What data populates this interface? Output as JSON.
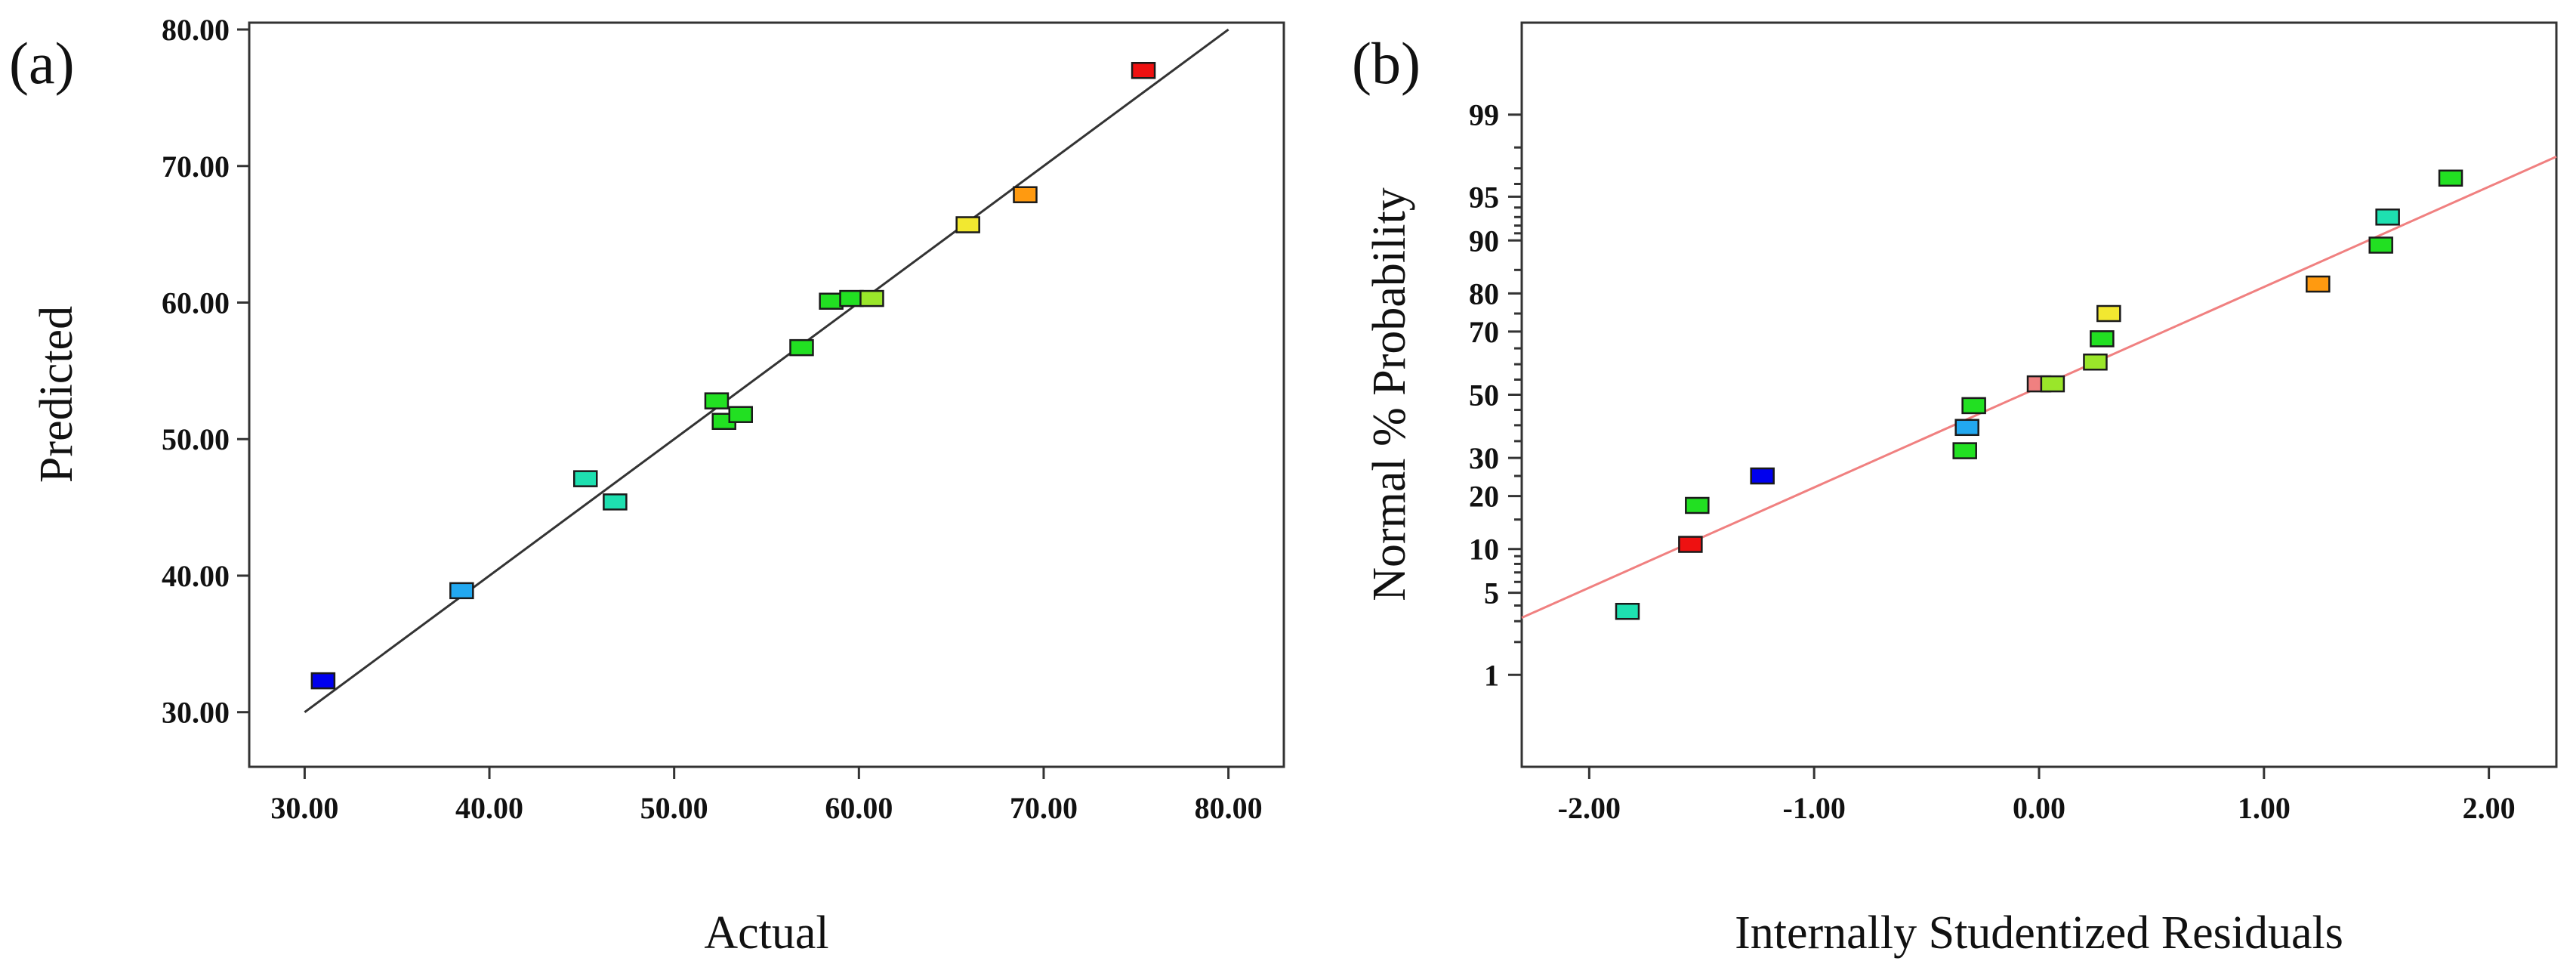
{
  "chart_data": [
    {
      "type": "scatter",
      "panel_label": "(a)",
      "xlabel": "Actual",
      "ylabel": "Predicted",
      "xlim": [
        27,
        83
      ],
      "ylim": [
        26,
        80.5
      ],
      "xticks": [
        30,
        40,
        50,
        60,
        70,
        80
      ],
      "xtick_labels": [
        "30.00",
        "40.00",
        "50.00",
        "60.00",
        "70.00",
        "80.00"
      ],
      "yticks": [
        30,
        40,
        50,
        60,
        70,
        80
      ],
      "ytick_labels": [
        "30.00",
        "40.00",
        "50.00",
        "60.00",
        "70.00",
        "80.00"
      ],
      "fit_line": {
        "from": [
          30,
          30
        ],
        "to": [
          80,
          80
        ],
        "color": "#333333"
      },
      "points": [
        {
          "x": 31.0,
          "y": 32.3,
          "color": "#0000ee"
        },
        {
          "x": 38.5,
          "y": 38.9,
          "color": "#22a8f0"
        },
        {
          "x": 45.2,
          "y": 47.1,
          "color": "#1ee0b0"
        },
        {
          "x": 46.8,
          "y": 45.4,
          "color": "#1ee0b0"
        },
        {
          "x": 52.3,
          "y": 52.8,
          "color": "#22e022"
        },
        {
          "x": 52.7,
          "y": 51.3,
          "color": "#22e022"
        },
        {
          "x": 53.6,
          "y": 51.8,
          "color": "#22e022"
        },
        {
          "x": 56.9,
          "y": 56.7,
          "color": "#22e022"
        },
        {
          "x": 58.5,
          "y": 60.1,
          "color": "#22e022"
        },
        {
          "x": 59.6,
          "y": 60.3,
          "color": "#22e022"
        },
        {
          "x": 60.7,
          "y": 60.3,
          "color": "#9ae62a"
        },
        {
          "x": 65.9,
          "y": 65.7,
          "color": "#f2e830"
        },
        {
          "x": 69.0,
          "y": 67.9,
          "color": "#ff9a10"
        },
        {
          "x": 75.4,
          "y": 77.0,
          "color": "#ee1111"
        }
      ]
    },
    {
      "type": "scatter",
      "panel_label": "(b)",
      "xlabel": "Internally Studentized Residuals",
      "ylabel": "Normal % Probability",
      "xlim": [
        -2.3,
        2.3
      ],
      "y_scale": "normal-probability",
      "ylim": [
        0.1,
        99.9
      ],
      "xticks": [
        -2,
        -1,
        0,
        1,
        2
      ],
      "xtick_labels": [
        "-2.00",
        "-1.00",
        "0.00",
        "1.00",
        "2.00"
      ],
      "yticks": [
        1,
        5,
        10,
        20,
        30,
        50,
        70,
        80,
        90,
        95,
        99
      ],
      "ytick_labels": [
        "1",
        "5",
        "10",
        "20",
        "30",
        "50",
        "70",
        "80",
        "90",
        "95",
        "99"
      ],
      "fit_line": {
        "from": [
          -2.3,
          3.2
        ],
        "to": [
          2.3,
          97.6
        ],
        "color": "#f08080"
      },
      "points": [
        {
          "x": -1.83,
          "y": 3.6,
          "color": "#1ee0b0"
        },
        {
          "x": -1.55,
          "y": 10.7,
          "color": "#ee1111"
        },
        {
          "x": -1.52,
          "y": 17.9,
          "color": "#22e022"
        },
        {
          "x": -1.23,
          "y": 25.0,
          "color": "#0000ee"
        },
        {
          "x": -0.33,
          "y": 32.1,
          "color": "#22e022"
        },
        {
          "x": -0.32,
          "y": 39.3,
          "color": "#22a8f0"
        },
        {
          "x": -0.29,
          "y": 46.4,
          "color": "#22e022"
        },
        {
          "x": 0.0,
          "y": 53.6,
          "color": "#f08080"
        },
        {
          "x": 0.06,
          "y": 53.6,
          "color": "#9ae62a"
        },
        {
          "x": 0.25,
          "y": 60.7,
          "color": "#9ae62a"
        },
        {
          "x": 0.28,
          "y": 67.9,
          "color": "#22e022"
        },
        {
          "x": 0.31,
          "y": 75.0,
          "color": "#f2e830"
        },
        {
          "x": 1.24,
          "y": 82.1,
          "color": "#ff9a10"
        },
        {
          "x": 1.52,
          "y": 89.3,
          "color": "#22e022"
        },
        {
          "x": 1.55,
          "y": 93.0,
          "color": "#1ee0b0"
        },
        {
          "x": 1.83,
          "y": 96.4,
          "color": "#22e022"
        }
      ]
    }
  ]
}
